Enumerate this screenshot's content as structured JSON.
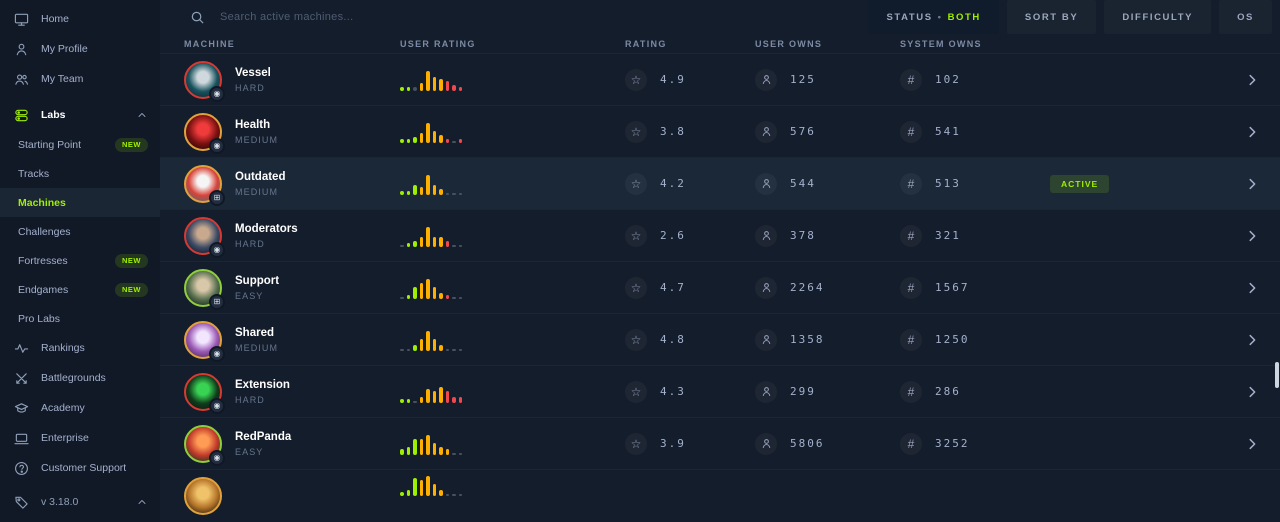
{
  "colors": {
    "accent": "#9fef00",
    "easy": "#8fce3c",
    "medium": "#e2a23b",
    "hard": "#d63a32",
    "bar_green": "#9fef00",
    "bar_orange": "#ffaf00",
    "bar_red": "#f0484d",
    "bar_dim": "#46525f"
  },
  "sidebar": {
    "items": [
      {
        "label": "Home",
        "icon": "monitor-icon"
      },
      {
        "label": "My Profile",
        "icon": "user-icon"
      },
      {
        "label": "My Team",
        "icon": "users-icon"
      },
      {
        "label": "Labs",
        "icon": "labs-icon",
        "bold": true,
        "expanded": true
      },
      {
        "label": "Starting Point",
        "sub": true,
        "badge": "NEW"
      },
      {
        "label": "Tracks",
        "sub": true
      },
      {
        "label": "Machines",
        "sub": true,
        "selected": true
      },
      {
        "label": "Challenges",
        "sub": true
      },
      {
        "label": "Fortresses",
        "sub": true,
        "badge": "NEW"
      },
      {
        "label": "Endgames",
        "sub": true,
        "badge": "NEW"
      },
      {
        "label": "Pro Labs",
        "sub": true
      },
      {
        "label": "Rankings",
        "icon": "rankings-icon"
      },
      {
        "label": "Battlegrounds",
        "icon": "battlegrounds-icon"
      },
      {
        "label": "Academy",
        "icon": "academy-icon"
      },
      {
        "label": "Enterprise",
        "icon": "enterprise-icon"
      },
      {
        "label": "Customer Support",
        "icon": "help-icon"
      },
      {
        "label": "v 3.18.0",
        "icon": "tag-icon",
        "expanded": true,
        "version": true
      }
    ]
  },
  "topbar": {
    "search_placeholder": "Search active machines...",
    "filters": [
      {
        "label": "STATUS",
        "value": "BOTH",
        "active": true
      },
      {
        "label": "SORT BY"
      },
      {
        "label": "DIFFICULTY"
      },
      {
        "label": "OS"
      }
    ]
  },
  "table": {
    "headers": [
      "MACHINE",
      "USER RATING",
      "RATING",
      "USER OWNS",
      "SYSTEM OWNS"
    ],
    "rows": [
      {
        "name": "Vessel",
        "difficulty": "HARD",
        "ring": "#d63a32",
        "avatar_colors": [
          "#cfd8dc",
          "#19535f",
          "#0d2b36"
        ],
        "os_glyph": "◉",
        "rating": "4.9",
        "user_owns": "125",
        "system_owns": "102",
        "status": "",
        "histogram": {
          "h": [
            2,
            2,
            2,
            4,
            10,
            7,
            6,
            5,
            3,
            2
          ],
          "c": [
            "g",
            "g",
            "d",
            "o",
            "o",
            "o",
            "o",
            "r",
            "r",
            "r"
          ]
        }
      },
      {
        "name": "Health",
        "difficulty": "MEDIUM",
        "ring": "#e2a23b",
        "avatar_colors": [
          "#ef3b3b",
          "#7a1111",
          "#2b0707"
        ],
        "os_glyph": "◉",
        "rating": "3.8",
        "user_owns": "576",
        "system_owns": "541",
        "status": "",
        "histogram": {
          "h": [
            2,
            2,
            3,
            5,
            10,
            6,
            4,
            2,
            1,
            2
          ],
          "c": [
            "g",
            "g",
            "g",
            "o",
            "o",
            "o",
            "o",
            "r",
            "d",
            "r"
          ]
        }
      },
      {
        "name": "Outdated",
        "difficulty": "MEDIUM",
        "ring": "#e2a23b",
        "avatar_colors": [
          "#f5f5f5",
          "#d84339",
          "#5b6770"
        ],
        "os_glyph": "⊞",
        "rating": "4.2",
        "user_owns": "544",
        "system_owns": "513",
        "status": "ACTIVE",
        "highlighted": true,
        "histogram": {
          "h": [
            2,
            2,
            5,
            4,
            10,
            5,
            3,
            1,
            1,
            1
          ],
          "c": [
            "g",
            "g",
            "g",
            "o",
            "o",
            "o",
            "o",
            "d",
            "d",
            "d"
          ]
        }
      },
      {
        "name": "Moderators",
        "difficulty": "HARD",
        "ring": "#d63a32",
        "avatar_colors": [
          "#c9a98e",
          "#3c4b66",
          "#151c2c"
        ],
        "os_glyph": "◉",
        "rating": "2.6",
        "user_owns": "378",
        "system_owns": "321",
        "status": "",
        "histogram": {
          "h": [
            1,
            2,
            3,
            5,
            10,
            5,
            5,
            3,
            1,
            1
          ],
          "c": [
            "d",
            "g",
            "g",
            "o",
            "o",
            "o",
            "o",
            "r",
            "d",
            "d"
          ]
        }
      },
      {
        "name": "Support",
        "difficulty": "EASY",
        "ring": "#8fce3c",
        "avatar_colors": [
          "#d8c7a8",
          "#57704e",
          "#1c2b22"
        ],
        "os_glyph": "⊞",
        "rating": "4.7",
        "user_owns": "2264",
        "system_owns": "1567",
        "status": "",
        "histogram": {
          "h": [
            1,
            2,
            6,
            8,
            10,
            6,
            3,
            2,
            1,
            1
          ],
          "c": [
            "d",
            "g",
            "g",
            "o",
            "o",
            "o",
            "o",
            "r",
            "d",
            "d"
          ]
        }
      },
      {
        "name": "Shared",
        "difficulty": "MEDIUM",
        "ring": "#e2a23b",
        "avatar_colors": [
          "#f2e6ff",
          "#9b59b6",
          "#512e5f"
        ],
        "os_glyph": "◉",
        "rating": "4.8",
        "user_owns": "1358",
        "system_owns": "1250",
        "status": "",
        "histogram": {
          "h": [
            1,
            1,
            3,
            6,
            10,
            6,
            3,
            1,
            1,
            1
          ],
          "c": [
            "d",
            "d",
            "g",
            "o",
            "o",
            "o",
            "o",
            "d",
            "d",
            "d"
          ]
        }
      },
      {
        "name": "Extension",
        "difficulty": "HARD",
        "ring": "#d63a32",
        "avatar_colors": [
          "#39d353",
          "#0f3d1c",
          "#101a10"
        ],
        "os_glyph": "◉",
        "rating": "4.3",
        "user_owns": "299",
        "system_owns": "286",
        "status": "",
        "histogram": {
          "h": [
            2,
            2,
            1,
            3,
            7,
            6,
            8,
            6,
            3,
            3
          ],
          "c": [
            "g",
            "g",
            "d",
            "o",
            "o",
            "o",
            "o",
            "r",
            "r",
            "r"
          ]
        }
      },
      {
        "name": "RedPanda",
        "difficulty": "EASY",
        "ring": "#8fce3c",
        "avatar_colors": [
          "#ff9b54",
          "#c0392b",
          "#27391c"
        ],
        "os_glyph": "◉",
        "rating": "3.9",
        "user_owns": "5806",
        "system_owns": "3252",
        "status": "",
        "histogram": {
          "h": [
            3,
            4,
            8,
            8,
            10,
            6,
            4,
            3,
            1,
            1
          ],
          "c": [
            "g",
            "g",
            "g",
            "o",
            "o",
            "o",
            "o",
            "o",
            "d",
            "d"
          ]
        }
      },
      {
        "partial": true,
        "ring": "#e2a23b",
        "avatar_colors": [
          "#f0c36a",
          "#b5742a",
          "#3a2a12"
        ],
        "histogram": {
          "h": [
            2,
            3,
            9,
            8,
            10,
            6,
            3,
            1,
            1,
            1
          ],
          "c": [
            "g",
            "g",
            "g",
            "o",
            "o",
            "o",
            "o",
            "d",
            "d",
            "d"
          ]
        }
      }
    ]
  }
}
